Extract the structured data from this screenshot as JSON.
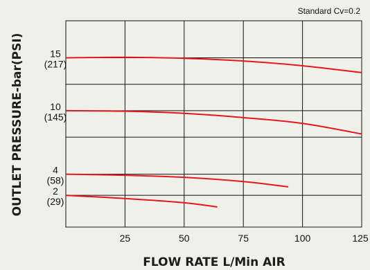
{
  "chart_data": {
    "type": "line",
    "annotation": "Standard Cv=0.2",
    "xlabel": "FLOW RATE  L/Min AIR",
    "ylabel": "OUTLET PRESSURE-bar(PSI)",
    "xlim": [
      0,
      125
    ],
    "ylim": [
      -1,
      18.5
    ],
    "x_ticks": [
      25,
      50,
      75,
      100,
      125
    ],
    "y_gridlines": [
      15,
      12.5,
      10,
      7.5,
      4,
      2
    ],
    "y_ticks": [
      {
        "value": 15,
        "bar": "15",
        "psi": "(217)"
      },
      {
        "value": 10,
        "bar": "10",
        "psi": "(145)"
      },
      {
        "value": 4,
        "bar": "4",
        "psi": "(58)"
      },
      {
        "value": 2,
        "bar": "2",
        "psi": "(29)"
      }
    ],
    "grid": true,
    "series": [
      {
        "x": [
          0,
          25,
          50,
          75,
          100,
          125
        ],
        "y": [
          15,
          15.05,
          14.95,
          14.7,
          14.25,
          13.6
        ]
      },
      {
        "x": [
          0,
          25,
          50,
          75,
          100,
          125
        ],
        "y": [
          10,
          9.95,
          9.75,
          9.35,
          8.8,
          7.8
        ]
      },
      {
        "x": [
          0,
          25,
          50,
          75,
          94
        ],
        "y": [
          4,
          3.9,
          3.7,
          3.3,
          2.8
        ]
      },
      {
        "x": [
          0,
          25,
          50,
          64
        ],
        "y": [
          2,
          1.7,
          1.3,
          0.9
        ]
      }
    ],
    "color": "#e8161c"
  }
}
